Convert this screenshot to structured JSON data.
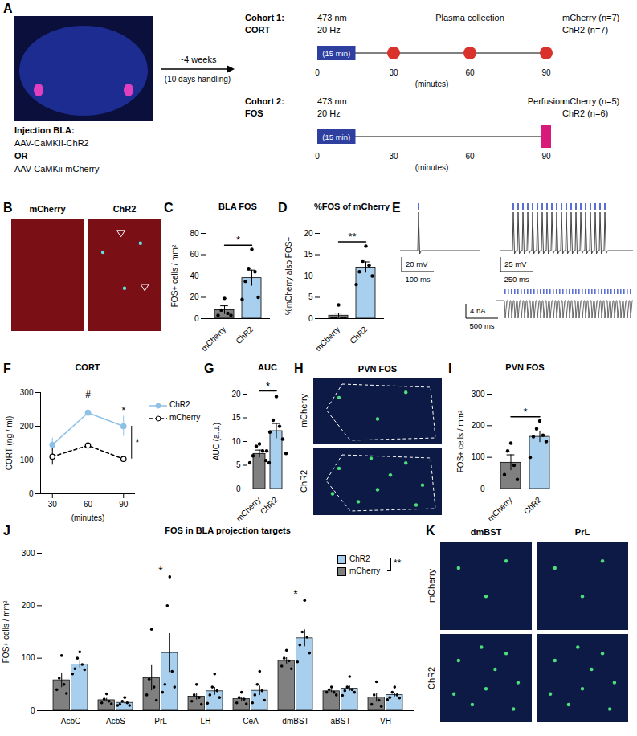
{
  "chart_data": [
    {
      "panel": "A",
      "type": "schematic",
      "injection": {
        "title": "Injection BLA:",
        "options": [
          "AAV-CaMKII-ChR2",
          "OR",
          "AAV-CaMKii-mCherry"
        ]
      },
      "interval": {
        "label": "~4 weeks",
        "sublabel": "(10 days handling)"
      },
      "stimulation": {
        "wavelength": "473 nm",
        "frequency": "20 Hz",
        "label": "(15 min)",
        "start": 0,
        "end": 15
      },
      "xlim": [
        0,
        90
      ],
      "xticks": [
        0,
        30,
        60,
        90
      ],
      "xlabel": "(minutes)",
      "cohorts": [
        {
          "name": "Cohort 1:",
          "measure": "CORT",
          "event": "Plasma collection",
          "samples": [
            30,
            60,
            90
          ],
          "marker": "circle",
          "color": "#d9312b",
          "groups": [
            "mCherry (n=7)",
            "ChR2 (n=7)"
          ]
        },
        {
          "name": "Cohort 2:",
          "measure": "FOS",
          "event": "Perfusion",
          "samples": [
            90
          ],
          "marker": "bar",
          "color": "#d81b7a",
          "groups": [
            "mCherry (n=5)",
            "ChR2 (n=6)"
          ]
        }
      ]
    },
    {
      "panel": "B",
      "type": "image",
      "labels": [
        "mCherry",
        "ChR2"
      ]
    },
    {
      "panel": "C",
      "type": "bar",
      "title": "BLA FOS",
      "categories": [
        "mCherry",
        "ChR2"
      ],
      "values": [
        8,
        38
      ],
      "errors": [
        4,
        7.5
      ],
      "points": [
        [
          19,
          8,
          5,
          3,
          3
        ],
        [
          65,
          47,
          44,
          35,
          20,
          18
        ]
      ],
      "colors": [
        "#808080",
        "#a9cfee"
      ],
      "ylabel": "FOS+ cells / mm²",
      "ylim": [
        0,
        80
      ],
      "yticks": [
        0,
        20,
        40,
        60,
        80
      ],
      "significance": "*"
    },
    {
      "panel": "D",
      "type": "bar",
      "title": "%FOS of mCherry",
      "categories": [
        "mCherry",
        "ChR2"
      ],
      "values": [
        0.7,
        12
      ],
      "errors": [
        0.6,
        1.3
      ],
      "points": [
        [
          3.2,
          0,
          0,
          0,
          0
        ],
        [
          17,
          13.5,
          12.5,
          11,
          10,
          8
        ]
      ],
      "colors": [
        "#808080",
        "#a9cfee"
      ],
      "ylabel": "%mCherry also FOS+",
      "ylim": [
        0,
        20
      ],
      "yticks": [
        0,
        5,
        10,
        15,
        20
      ],
      "significance": "**"
    },
    {
      "panel": "E",
      "type": "trace",
      "color": "#5b6fd0",
      "traces": [
        {
          "pulses": 1,
          "scalebar": [
            "20 mV",
            "100 ms"
          ]
        },
        {
          "pulses": 20,
          "scalebar": [
            "25 mV",
            "250 ms"
          ]
        },
        {
          "pulses": 40,
          "scalebar": [
            "4 nA",
            "500 ms"
          ]
        }
      ]
    },
    {
      "panel": "F",
      "type": "line",
      "title": "CORT",
      "x": [
        30,
        60,
        90
      ],
      "xlim": [
        20,
        100
      ],
      "xticks": [
        30,
        60,
        90
      ],
      "xlabel": "(minutes)",
      "ylabel": "CORT (ng / ml)",
      "ylim": [
        0,
        300
      ],
      "yticks": [
        0,
        100,
        200,
        300
      ],
      "series": [
        {
          "name": "ChR2",
          "color": "#8ec1e6",
          "values": [
            145,
            240,
            200
          ],
          "errors": [
            20,
            38,
            30
          ],
          "marker": "circle",
          "line_style": "solid"
        },
        {
          "name": "mCherry",
          "color": "#000000",
          "values": [
            110,
            143,
            103
          ],
          "errors": [
            25,
            20,
            6
          ],
          "marker": "open_circle",
          "line_style": "dashed"
        }
      ],
      "point_annotations": [
        {
          "x": 60,
          "text": "#"
        },
        {
          "x": 90,
          "text": "*"
        }
      ],
      "significance": "*",
      "legend": "right"
    },
    {
      "panel": "G",
      "type": "bar",
      "title": "AUC",
      "categories": [
        "mCherry",
        "ChR2"
      ],
      "values": [
        7.4,
        12.2
      ],
      "errors": [
        0.8,
        1.6
      ],
      "points": [
        [
          9.5,
          9,
          8,
          7,
          6,
          5.5,
          5.5
        ],
        [
          19.5,
          14.5,
          13.2,
          12,
          10.5,
          8,
          7.5
        ]
      ],
      "colors": [
        "#808080",
        "#a9cfee"
      ],
      "ylabel": "AUC (a.u.)",
      "ylim": [
        0,
        20
      ],
      "yticks": [
        0,
        5,
        10,
        15,
        20
      ],
      "significance": "*"
    },
    {
      "panel": "H",
      "type": "image",
      "title": "PVN FOS",
      "labels": [
        "mCherry",
        "ChR2"
      ]
    },
    {
      "panel": "I",
      "type": "bar",
      "title": "PVN FOS",
      "categories": [
        "mCherry",
        "ChR2"
      ],
      "values": [
        83,
        165
      ],
      "errors": [
        25,
        18
      ],
      "points": [
        [
          145,
          120,
          75,
          45,
          30
        ],
        [
          215,
          190,
          170,
          165,
          150,
          100
        ]
      ],
      "colors": [
        "#808080",
        "#a9cfee"
      ],
      "ylabel": "FOS+ cells / mm²",
      "ylim": [
        0,
        300
      ],
      "yticks": [
        0,
        100,
        200,
        300
      ],
      "significance": "*"
    },
    {
      "panel": "J",
      "type": "grouped_bar",
      "title": "FOS in BLA projection targets",
      "categories": [
        "AcbC",
        "AcbS",
        "PrL",
        "LH",
        "CeA",
        "dmBST",
        "aBST",
        "VH"
      ],
      "ylabel": "FOS+ cells / mm²",
      "ylim": [
        0,
        300
      ],
      "yticks": [
        0,
        100,
        200,
        300
      ],
      "series": [
        {
          "name": "mCherry",
          "color": "#808080",
          "values": [
            58,
            20,
            62,
            27,
            22,
            95,
            37,
            25
          ],
          "errors": [
            14,
            3.5,
            24,
            6.5,
            4,
            6,
            2.5,
            8.5
          ],
          "points": [
            [
              105,
              62,
              50,
              40,
              33
            ],
            [
              32,
              22,
              18,
              15,
              13
            ],
            [
              155,
              60,
              45,
              30,
              20
            ],
            [
              50,
              30,
              25,
              18,
              12
            ],
            [
              35,
              25,
              22,
              15,
              13
            ],
            [
              115,
              100,
              95,
              85,
              80
            ],
            [
              45,
              40,
              35,
              35,
              30
            ],
            [
              55,
              30,
              20,
              12,
              8
            ]
          ]
        },
        {
          "name": "ChR2",
          "color": "#a9cfee",
          "values": [
            88,
            15,
            110,
            37,
            38,
            138,
            42,
            30
          ],
          "errors": [
            6.5,
            2.5,
            37,
            7.5,
            9,
            16,
            5,
            3.5
          ],
          "points": [
            [
              112,
              100,
              88,
              80,
              78,
              70
            ],
            [
              25,
              18,
              15,
              12,
              10,
              10
            ],
            [
              255,
              200,
              75,
              50,
              45,
              35
            ],
            [
              70,
              45,
              38,
              30,
              25,
              14
            ],
            [
              75,
              50,
              38,
              30,
              20,
              15
            ],
            [
              210,
              150,
              140,
              125,
              110,
              93
            ],
            [
              65,
              45,
              40,
              38,
              35,
              29
            ],
            [
              45,
              35,
              30,
              25,
              24,
              21
            ]
          ]
        }
      ],
      "significance": [
        null,
        null,
        "*",
        null,
        null,
        "*",
        null,
        null
      ],
      "overall_significance": "**",
      "legend": "top-right"
    },
    {
      "panel": "K",
      "type": "image",
      "columns": [
        "dmBST",
        "PrL"
      ],
      "labels": [
        "mCherry",
        "ChR2"
      ]
    }
  ]
}
